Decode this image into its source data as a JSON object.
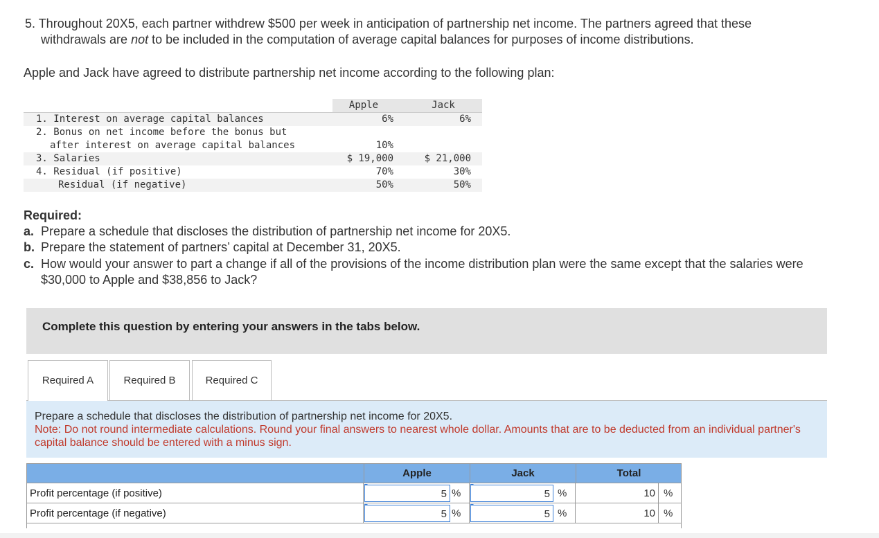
{
  "intro": {
    "line1": "5. Throughout 20X5, each partner withdrew $500 per week in anticipation of partnership net income. The partners agreed that these",
    "line2_before": "withdrawals are",
    "line2_emphasis": "not",
    "line2_after": "to be included in the computation of average capital balances for purposes of income distributions."
  },
  "plan_intro": "Apple and Jack have agreed to distribute partnership net income according to the following plan:",
  "plan_table": {
    "headers": [
      "Apple",
      "Jack"
    ],
    "rows": [
      {
        "label": [
          "1. Interest on average capital balances"
        ],
        "apple": "6%",
        "jack": "6%"
      },
      {
        "label": [
          "2. Bonus on net income before the bonus but",
          "after interest on average capital balances"
        ],
        "apple": "10%"
      },
      {
        "label": [
          "3. Salaries"
        ],
        "apple": "$ 19,000",
        "jack": "$ 21,000"
      },
      {
        "label": [
          "4. Residual (if positive)"
        ],
        "apple": "70%",
        "jack": "30%"
      },
      {
        "label": [
          "Residual (if negative)"
        ],
        "apple": "50%",
        "jack": "50%"
      }
    ]
  },
  "required": {
    "title": "Required:",
    "items": [
      {
        "letter": "a.",
        "text": "Prepare a schedule that discloses the distribution of partnership net income for 20X5."
      },
      {
        "letter": "b.",
        "text": "Prepare the statement of partners’ capital at December 31, 20X5."
      },
      {
        "letter": "c.",
        "text": "How would your answer to part a change if all of the provisions of the income distribution plan were the same except that the salaries were $30,000 to Apple and $38,856 to Jack?"
      }
    ]
  },
  "banner": "Complete this question by entering your answers in the tabs below.",
  "tabs": [
    "Required A",
    "Required B",
    "Required C"
  ],
  "panel": {
    "prompt": "Prepare a schedule that discloses the distribution of partnership net income for 20X5.",
    "note": "Note: Do not round intermediate calculations. Round your final answers to nearest whole dollar. Amounts that are to be deducted from an individual partner's capital balance should be entered with a minus sign."
  },
  "answer_table": {
    "headers": [
      "Apple",
      "Jack",
      "Total"
    ],
    "unit": "%",
    "rows": [
      {
        "label": "Profit percentage (if positive)",
        "apple": "5",
        "jack": "5",
        "total": "10"
      },
      {
        "label": "Profit percentage (if negative)",
        "apple": "5",
        "jack": "5",
        "total": "10"
      }
    ]
  }
}
